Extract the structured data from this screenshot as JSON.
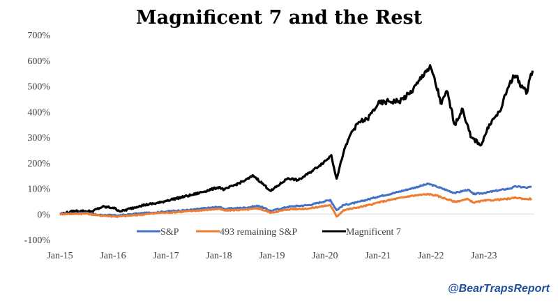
{
  "credit": "@BearTrapsReport",
  "chart_data": {
    "type": "line",
    "title": "Magnificent 7 and the Rest",
    "xlabel": "",
    "ylabel": "",
    "ylim": [
      -100,
      700
    ],
    "yticks": [
      -100,
      0,
      100,
      200,
      300,
      400,
      500,
      600,
      700
    ],
    "ytick_labels": [
      "-100%",
      "0%",
      "100%",
      "200%",
      "300%",
      "400%",
      "500%",
      "600%",
      "700%"
    ],
    "xlim": [
      2015.0,
      2023.95
    ],
    "xticks": [
      2015,
      2016,
      2017,
      2018,
      2019,
      2020,
      2021,
      2022,
      2023
    ],
    "xtick_labels": [
      "Jan-15",
      "Jan-16",
      "Jan-17",
      "Jan-18",
      "Jan-19",
      "Jan-20",
      "Jan-21",
      "Jan-22",
      "Jan-23"
    ],
    "grid": false,
    "legend_position": "bottom",
    "series": [
      {
        "name": "S&P",
        "color": "#4472c4",
        "x": [
          2015.0,
          2015.5,
          2015.7,
          2016.1,
          2016.5,
          2016.9,
          2017.0,
          2017.5,
          2018.0,
          2018.1,
          2018.5,
          2018.75,
          2018.98,
          2019.3,
          2019.5,
          2019.7,
          2020.1,
          2020.22,
          2020.35,
          2020.6,
          2020.9,
          2021.0,
          2021.3,
          2021.6,
          2021.95,
          2022.1,
          2022.45,
          2022.7,
          2022.8,
          2023.0,
          2023.2,
          2023.5,
          2023.6,
          2023.8,
          2023.9
        ],
        "values": [
          0,
          5,
          -3,
          -6,
          2,
          8,
          10,
          17,
          28,
          20,
          25,
          32,
          12,
          28,
          32,
          35,
          55,
          15,
          35,
          45,
          62,
          68,
          82,
          98,
          118,
          108,
          82,
          95,
          78,
          82,
          90,
          100,
          108,
          103,
          106
        ]
      },
      {
        "name": "493 remaining S&P",
        "color": "#ed7d31",
        "x": [
          2015.0,
          2015.5,
          2015.7,
          2016.1,
          2016.5,
          2016.9,
          2017.0,
          2017.5,
          2018.0,
          2018.1,
          2018.5,
          2018.75,
          2018.98,
          2019.3,
          2019.5,
          2019.7,
          2020.1,
          2020.22,
          2020.35,
          2020.6,
          2020.9,
          2021.0,
          2021.3,
          2021.6,
          2021.95,
          2022.1,
          2022.45,
          2022.7,
          2022.8,
          2023.0,
          2023.2,
          2023.5,
          2023.6,
          2023.8,
          2023.9
        ],
        "values": [
          0,
          2,
          -5,
          -10,
          -3,
          5,
          5,
          12,
          20,
          14,
          17,
          22,
          5,
          18,
          20,
          22,
          35,
          -10,
          15,
          25,
          38,
          45,
          58,
          70,
          78,
          72,
          48,
          58,
          45,
          52,
          55,
          60,
          64,
          58,
          60
        ]
      },
      {
        "name": "Magnificent 7",
        "color": "#000000",
        "x": [
          2015.0,
          2015.3,
          2015.6,
          2015.8,
          2016.0,
          2016.15,
          2016.5,
          2016.9,
          2017.0,
          2017.5,
          2018.0,
          2018.1,
          2018.5,
          2018.65,
          2018.98,
          2019.3,
          2019.5,
          2019.7,
          2019.9,
          2020.05,
          2020.12,
          2020.22,
          2020.35,
          2020.5,
          2020.65,
          2020.8,
          2021.0,
          2021.2,
          2021.4,
          2021.6,
          2021.75,
          2021.9,
          2022.0,
          2022.2,
          2022.3,
          2022.45,
          2022.6,
          2022.75,
          2022.95,
          2023.1,
          2023.3,
          2023.5,
          2023.6,
          2023.8,
          2023.85,
          2023.92
        ],
        "values": [
          0,
          12,
          10,
          28,
          25,
          10,
          32,
          45,
          52,
          75,
          105,
          95,
          132,
          150,
          90,
          140,
          132,
          160,
          190,
          215,
          230,
          138,
          240,
          320,
          360,
          370,
          430,
          440,
          440,
          470,
          510,
          560,
          570,
          430,
          480,
          350,
          410,
          300,
          270,
          350,
          400,
          520,
          540,
          470,
          520,
          560
        ]
      }
    ]
  }
}
